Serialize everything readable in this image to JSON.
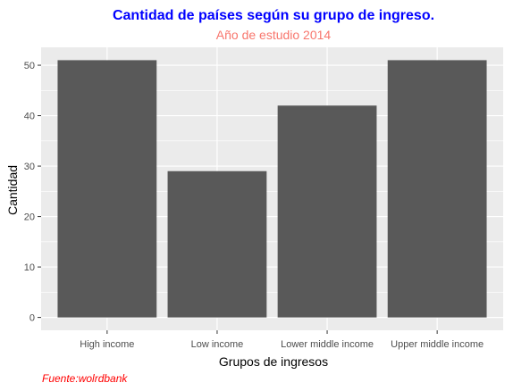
{
  "chart_data": {
    "type": "bar",
    "title": "Cantidad  de países según su grupo de ingreso.",
    "subtitle": "Año de estudio 2014",
    "xlabel": "Grupos de ingresos",
    "ylabel": "Cantidad",
    "caption": "Fuente:wolrdbank",
    "categories": [
      "High income",
      "Low income",
      "Lower middle income",
      "Upper middle income"
    ],
    "values": [
      51,
      29,
      42,
      51
    ],
    "ylim": [
      -2.55,
      53.55
    ],
    "yticks": [
      0,
      10,
      20,
      30,
      40,
      50
    ],
    "grid": true,
    "colors": {
      "bar": "#595959",
      "panel": "#ebebeb",
      "grid": "#ffffff",
      "title": "#0000ff",
      "subtitle": "#f8766d",
      "caption": "#ff0000"
    }
  }
}
